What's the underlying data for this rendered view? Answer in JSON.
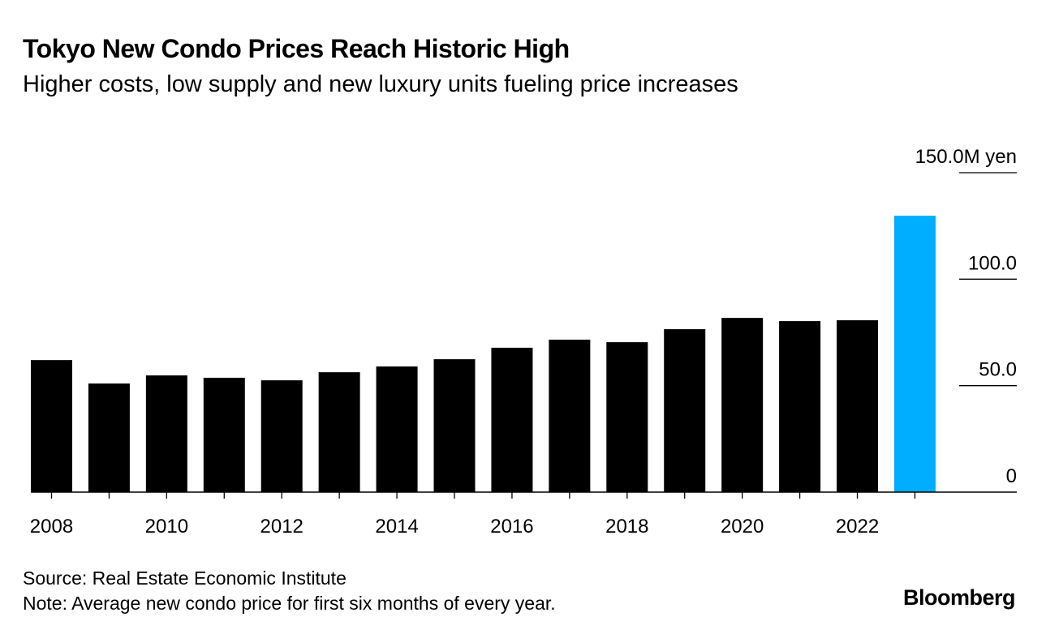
{
  "chart_data": {
    "type": "bar",
    "title": "Tokyo New Condo Prices Reach Historic High",
    "subtitle": "Higher costs, low supply and new luxury units fueling price increases",
    "categories": [
      "2008",
      "2009",
      "2010",
      "2011",
      "2012",
      "2013",
      "2014",
      "2015",
      "2016",
      "2017",
      "2018",
      "2019",
      "2020",
      "2021",
      "2022",
      "2023"
    ],
    "values": [
      62.0,
      51.0,
      54.8,
      53.7,
      52.5,
      56.3,
      59.0,
      62.4,
      67.8,
      71.6,
      70.4,
      76.5,
      81.8,
      80.3,
      80.7,
      129.8
    ],
    "highlight_index": 15,
    "colors": {
      "bar": "#000000",
      "highlight": "#00aeff"
    },
    "xlabel": "",
    "ylabel": "M yen",
    "ylim": [
      0,
      150
    ],
    "y_ticks": [
      0,
      50,
      100,
      150
    ],
    "y_tick_labels": [
      "0",
      "50.0",
      "100.0",
      "150.0M yen"
    ],
    "x_tick_labels": [
      "2008",
      "2010",
      "2012",
      "2014",
      "2016",
      "2018",
      "2020",
      "2022"
    ],
    "legend": "none"
  },
  "footer": {
    "source": "Source: Real Estate Economic Institute",
    "note": "Note: Average new condo price for first six months of every year.",
    "brand": "Bloomberg"
  }
}
